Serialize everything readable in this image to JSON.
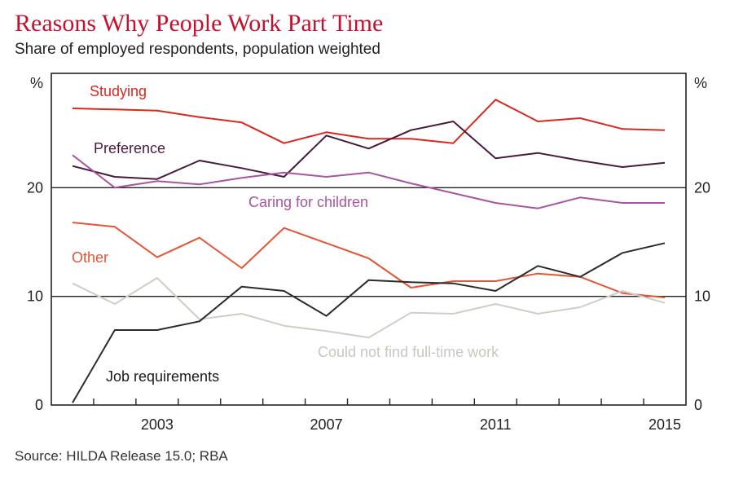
{
  "header": {
    "title": "Reasons Why People Work Part Time",
    "subtitle": "Share of employed respondents, population weighted"
  },
  "footer": {
    "source": "Source: HILDA Release 15.0; RBA"
  },
  "chart_data": {
    "type": "line",
    "title": "Reasons Why People Work Part Time",
    "subtitle": "Share of employed respondents, population weighted",
    "xlabel": "",
    "ylabel": "%",
    "ylim": [
      0,
      30
    ],
    "xlim": [
      2001,
      2015
    ],
    "grid": "horizontal",
    "x": [
      2001,
      2002,
      2003,
      2004,
      2005,
      2006,
      2007,
      2008,
      2009,
      2010,
      2011,
      2012,
      2013,
      2014,
      2015
    ],
    "x_ticks": [
      2003,
      2007,
      2011,
      2015
    ],
    "x_tick_labels": [
      "2003",
      "2007",
      "2011",
      "2015"
    ],
    "y_ticks": [
      0,
      10,
      20
    ],
    "y_tick_labels": [
      "0",
      "10",
      "20"
    ],
    "y_unit_left": "%",
    "y_unit_right": "%",
    "series": [
      {
        "name": "Studying",
        "color": "#d7291f",
        "values": [
          27.3,
          27.2,
          27.1,
          26.5,
          26.0,
          24.1,
          25.1,
          24.5,
          24.5,
          24.1,
          28.1,
          26.1,
          26.4,
          25.4,
          25.3
        ]
      },
      {
        "name": "Preference",
        "color": "#4a1a3e",
        "values": [
          22.0,
          21.0,
          20.8,
          22.5,
          21.8,
          21.0,
          24.8,
          23.6,
          25.3,
          26.1,
          22.7,
          23.2,
          22.5,
          21.9,
          22.3
        ]
      },
      {
        "name": "Caring for children",
        "color": "#a755a0",
        "values": [
          23.0,
          20.0,
          20.6,
          20.3,
          20.9,
          21.4,
          21.0,
          21.4,
          20.4,
          19.5,
          18.6,
          18.1,
          19.1,
          18.6,
          18.6
        ]
      },
      {
        "name": "Other",
        "color": "#e45535",
        "values": [
          16.8,
          16.4,
          13.6,
          15.4,
          12.6,
          16.3,
          14.9,
          13.5,
          10.8,
          11.4,
          11.4,
          12.1,
          11.8,
          10.3,
          9.9
        ]
      },
      {
        "name": "Could not find full-time work",
        "color": "#cfcdc5",
        "values": [
          11.2,
          9.3,
          11.7,
          7.9,
          8.4,
          7.3,
          6.8,
          6.2,
          8.5,
          8.4,
          9.3,
          8.4,
          9.0,
          10.5,
          9.4
        ]
      },
      {
        "name": "Job requirements",
        "color": "#2b2b2b",
        "values": [
          0.2,
          6.9,
          6.9,
          7.7,
          10.9,
          10.5,
          8.2,
          11.5,
          11.3,
          11.2,
          10.5,
          12.8,
          11.8,
          14.0,
          14.9
        ]
      }
    ],
    "labels": [
      {
        "text": "Studying",
        "series": "Studying",
        "color": "#d7291f"
      },
      {
        "text": "Preference",
        "series": "Preference",
        "color": "#4a1a3e"
      },
      {
        "text": "Caring for children",
        "series": "Caring for children",
        "color": "#a755a0"
      },
      {
        "text": "Other",
        "series": "Other",
        "color": "#e45535"
      },
      {
        "text": "Could not find full-time work",
        "series": "Could not find full-time work",
        "color": "#c9c7bf"
      },
      {
        "text": "Job requirements",
        "series": "Job requirements",
        "color": "#1a1a1a"
      }
    ]
  }
}
